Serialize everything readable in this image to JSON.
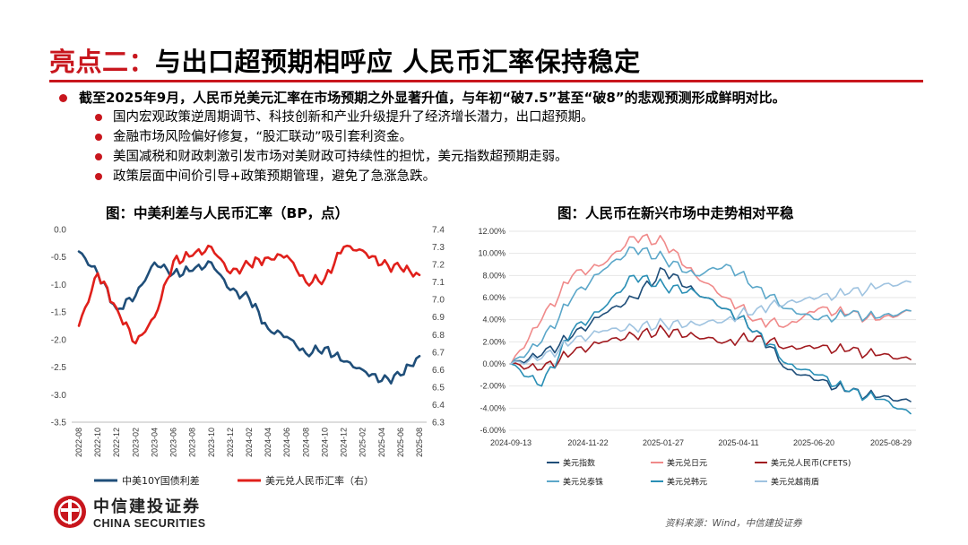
{
  "header": {
    "title_highlight": "亮点二：",
    "title_main": "与出口超预期相呼应 人民币汇率保持稳定"
  },
  "bullets": {
    "main": "截至2025年9月，人民币兑美元汇率在市场预期之外显著升值，与年初“破7.5”甚至“破8”的悲观预测形成鲜明对比。",
    "subs": [
      "国内宏观政策逆周期调节、科技创新和产业升级提升了经济增长潜力，出口超预期。",
      "金融市场风险偏好修复，“股汇联动”吸引套利资金。",
      "美国减税和财政刺激引发市场对美财政可持续性的担忧，美元指数超预期走弱。",
      "政策层面中间价引导+政策预期管理，避免了急涨急跌。"
    ]
  },
  "colors": {
    "accent": "#c8161d",
    "navy": "#1f4e79",
    "red": "#e0201b"
  },
  "chart_data": [
    {
      "type": "line",
      "title": "图：中美利差与人民币汇率（BP，点）",
      "x_ticks": [
        "2022-08",
        "2022-10",
        "2022-12",
        "2023-02",
        "2023-04",
        "2023-06",
        "2023-08",
        "2023-10",
        "2023-12",
        "2024-02",
        "2024-04",
        "2024-06",
        "2024-08",
        "2024-10",
        "2024-12",
        "2025-02",
        "2025-04",
        "2025-06",
        "2025-08"
      ],
      "y_left": {
        "range": [
          -3.5,
          0.0
        ],
        "ticks": [
          "0.0",
          "-0.5",
          "-1.0",
          "-1.5",
          "-2.0",
          "-2.5",
          "-3.0",
          "-3.5"
        ]
      },
      "y_right": {
        "range": [
          6.3,
          7.4
        ],
        "ticks": [
          "7.4",
          "7.3",
          "7.2",
          "7.1",
          "7.0",
          "6.9",
          "6.8",
          "6.7",
          "6.6",
          "6.5",
          "6.4",
          "6.3"
        ]
      },
      "series": [
        {
          "name": "中美10Y国债利差",
          "axis": "left",
          "color": "#1f4e79",
          "values": [
            -0.4,
            -0.8,
            -1.45,
            -1.2,
            -0.6,
            -0.8,
            -0.75,
            -0.6,
            -1.1,
            -1.25,
            -1.8,
            -1.95,
            -2.25,
            -2.15,
            -2.4,
            -2.55,
            -2.75,
            -2.65,
            -2.3
          ]
        },
        {
          "name": "美元兑人民币汇率（右）",
          "axis": "right",
          "color": "#e0201b",
          "values": [
            6.85,
            7.15,
            6.95,
            6.75,
            6.9,
            7.22,
            7.25,
            7.3,
            7.15,
            7.2,
            7.24,
            7.25,
            7.1,
            7.12,
            7.3,
            7.28,
            7.2,
            7.18,
            7.14
          ]
        }
      ]
    },
    {
      "type": "line",
      "title": "图：人民币在新兴市场中走势相对平稳",
      "x_ticks": [
        "2024-09-13",
        "2024-11-22",
        "2025-01-27",
        "2025-04-11",
        "2025-06-20",
        "2025-08-29"
      ],
      "y_ticks": [
        "12.00%",
        "10.00%",
        "8.00%",
        "6.00%",
        "4.00%",
        "2.00%",
        "0.00%",
        "-2.00%",
        "-4.00%",
        "-6.00%"
      ],
      "y_range": [
        -6,
        12
      ],
      "legend": "bottom",
      "series": [
        {
          "name": "美元指数",
          "color": "#1f4e79",
          "values": [
            0,
            0.8,
            2.5,
            4.5,
            6,
            8.5,
            6.5,
            5,
            3,
            -0.5,
            -1.5,
            -2.5,
            -3,
            -3.4
          ]
        },
        {
          "name": "美元兑日元",
          "color": "#f08a8a",
          "values": [
            0,
            4,
            8,
            9,
            11.5,
            11,
            8,
            6,
            4,
            3.5,
            5,
            4.5,
            4,
            4.8
          ]
        },
        {
          "name": "美元兑人民币(CFETS)",
          "color": "#a11a1f",
          "values": [
            0,
            -0.5,
            1,
            2,
            2.6,
            3,
            2.5,
            2,
            2.5,
            1.5,
            1.5,
            1.2,
            0.8,
            0.4
          ]
        },
        {
          "name": "美元兑泰铢",
          "color": "#5ba7c9",
          "values": [
            0,
            2,
            6,
            8.5,
            10.5,
            9.5,
            8,
            9,
            7,
            5,
            4,
            4.5,
            4.2,
            4.8
          ]
        },
        {
          "name": "美元兑韩元",
          "color": "#2a8fb5",
          "values": [
            0,
            -2,
            3,
            5,
            8,
            7,
            6.5,
            5,
            3,
            0,
            -1,
            -2.5,
            -3.2,
            -4.5
          ]
        },
        {
          "name": "美元兑越南盾",
          "color": "#9fc3e0",
          "values": [
            0,
            0.5,
            2,
            3,
            3.3,
            3.6,
            3.6,
            4,
            5,
            5.6,
            6,
            6.4,
            7,
            7.4
          ]
        }
      ]
    }
  ],
  "footer": {
    "logo_cn": "中信建投证券",
    "logo_en": "CHINA SECURITIES",
    "source": "资料来源：Wind，中信建投证券"
  }
}
